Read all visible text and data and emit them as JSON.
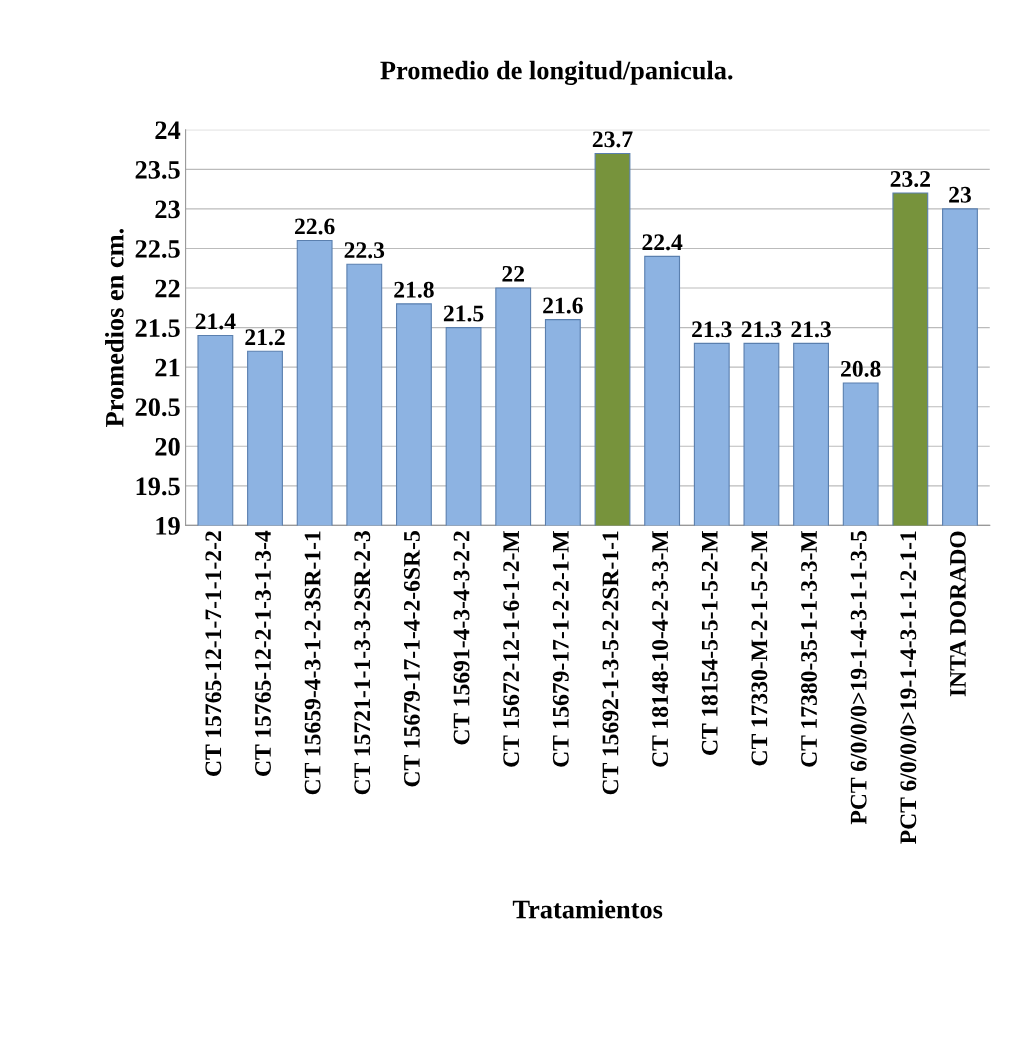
{
  "chart_data": {
    "type": "bar",
    "title": "Promedio de longitud/panicula.",
    "xlabel": "Tratamientos",
    "ylabel": "Promedios en cm.",
    "categories": [
      "CT 15765-12-1-7-1-1-2-2",
      "CT 15765-12-2-1-3-1-3-4",
      "CT 15659-4-3-1-2-3SR-1-1",
      "CT 15721-1-1-3-3-2SR-2-3",
      "CT 15679-17-1-4-2-6SR-5",
      "CT 15691-4-3-4-3-2-2",
      "CT 15672-12-1-6-1-2-M",
      "CT 15679-17-1-2-2-1-M",
      "CT 15692-1-3-5-2-2SR-1-1",
      "CT 18148-10-4-2-3-3-M",
      "CT 18154-5-5-1-5-2-M",
      "CT 17330-M-2-1-5-2-M",
      "CT 17380-35-1-1-3-3-M",
      "PCT 6/0/0/0>19-1-4-3-1-1-3-5",
      "PCT 6/0/0/0>19-1-4-3-1-1-2-1-1",
      "INTA DORADO"
    ],
    "values": [
      21.4,
      21.2,
      22.6,
      22.3,
      21.8,
      21.5,
      22,
      21.6,
      23.7,
      22.4,
      21.3,
      21.3,
      21.3,
      20.8,
      23.2,
      23
    ],
    "colors": [
      "#8db3e2",
      "#8db3e2",
      "#8db3e2",
      "#8db3e2",
      "#8db3e2",
      "#8db3e2",
      "#8db3e2",
      "#8db3e2",
      "#77933c",
      "#8db3e2",
      "#8db3e2",
      "#8db3e2",
      "#8db3e2",
      "#8db3e2",
      "#77933c",
      "#8db3e2"
    ],
    "ylim": [
      19,
      24
    ],
    "yticks": [
      19,
      19.5,
      20,
      20.5,
      21,
      21.5,
      22,
      22.5,
      23,
      23.5,
      24
    ],
    "grid": "y",
    "data_labels": true,
    "legend": false
  }
}
